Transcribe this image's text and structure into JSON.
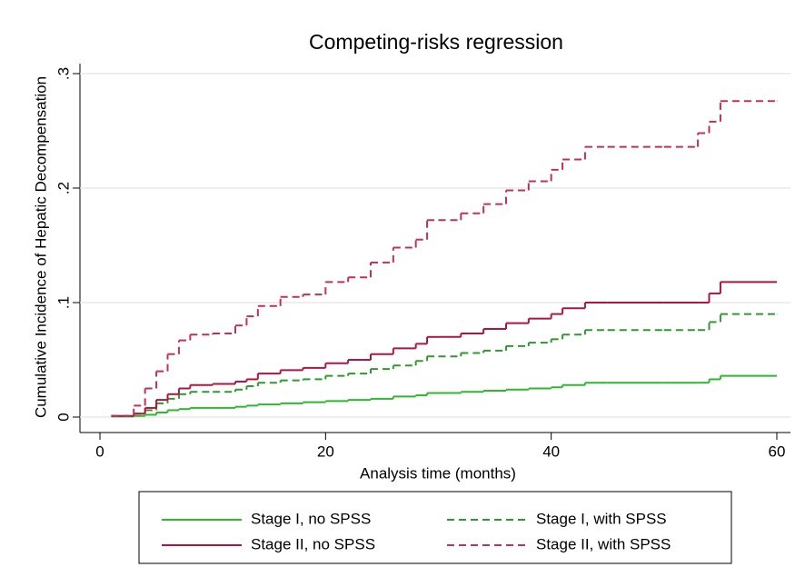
{
  "chart_data": {
    "type": "line",
    "step": true,
    "title": "Competing-risks regression",
    "xlabel": "Analysis time (months)",
    "ylabel": "Cumulative Incidence of Hepatic Decompensation",
    "x": [
      1,
      3,
      4,
      5,
      6,
      7,
      8,
      10,
      12,
      13,
      14,
      16,
      18,
      20,
      22,
      24,
      26,
      28,
      29,
      30,
      32,
      34,
      36,
      38,
      40,
      41,
      43,
      45,
      50,
      53,
      54,
      55,
      60
    ],
    "series": [
      {
        "name": "Stage I, no SPSS",
        "color": "#2eb82e",
        "dash": false,
        "values": [
          0.0005,
          0.001,
          0.002,
          0.004,
          0.006,
          0.007,
          0.008,
          0.008,
          0.009,
          0.01,
          0.011,
          0.012,
          0.013,
          0.014,
          0.015,
          0.016,
          0.018,
          0.019,
          0.021,
          0.021,
          0.022,
          0.023,
          0.024,
          0.025,
          0.026,
          0.028,
          0.03,
          0.03,
          0.03,
          0.03,
          0.033,
          0.036,
          0.036
        ]
      },
      {
        "name": "Stage I, with SPSS",
        "color": "#2e9a2e",
        "dash": true,
        "values": [
          0.001,
          0.003,
          0.006,
          0.012,
          0.016,
          0.02,
          0.022,
          0.022,
          0.024,
          0.027,
          0.03,
          0.032,
          0.033,
          0.036,
          0.038,
          0.042,
          0.045,
          0.049,
          0.053,
          0.053,
          0.056,
          0.058,
          0.062,
          0.065,
          0.068,
          0.072,
          0.076,
          0.076,
          0.076,
          0.076,
          0.083,
          0.09,
          0.09
        ]
      },
      {
        "name": "Stage II, no SPSS",
        "color": "#b01540",
        "dash": false,
        "values": [
          0.001,
          0.003,
          0.008,
          0.015,
          0.02,
          0.025,
          0.028,
          0.029,
          0.031,
          0.033,
          0.038,
          0.041,
          0.043,
          0.047,
          0.05,
          0.055,
          0.06,
          0.064,
          0.07,
          0.07,
          0.073,
          0.077,
          0.082,
          0.086,
          0.09,
          0.095,
          0.1,
          0.1,
          0.1,
          0.1,
          0.108,
          0.118,
          0.118
        ]
      },
      {
        "name": "Stage II, with SPSS",
        "color": "#c0305a",
        "dash": true,
        "values": [
          0.001,
          0.01,
          0.025,
          0.04,
          0.055,
          0.067,
          0.072,
          0.073,
          0.08,
          0.088,
          0.097,
          0.105,
          0.107,
          0.118,
          0.122,
          0.135,
          0.148,
          0.155,
          0.172,
          0.172,
          0.178,
          0.186,
          0.198,
          0.206,
          0.216,
          0.225,
          0.236,
          0.236,
          0.236,
          0.248,
          0.258,
          0.276,
          0.276
        ]
      }
    ],
    "xlim": [
      0,
      60
    ],
    "xticks": [
      0,
      20,
      40,
      60
    ],
    "ylim": [
      0,
      0.3
    ],
    "yticks": [
      0,
      {
        "value": 0.1,
        "label": ".1"
      },
      {
        "value": 0.2,
        "label": ".2"
      },
      {
        "value": 0.3,
        "label": ".3"
      }
    ],
    "grid": true,
    "legend": "bottom"
  }
}
